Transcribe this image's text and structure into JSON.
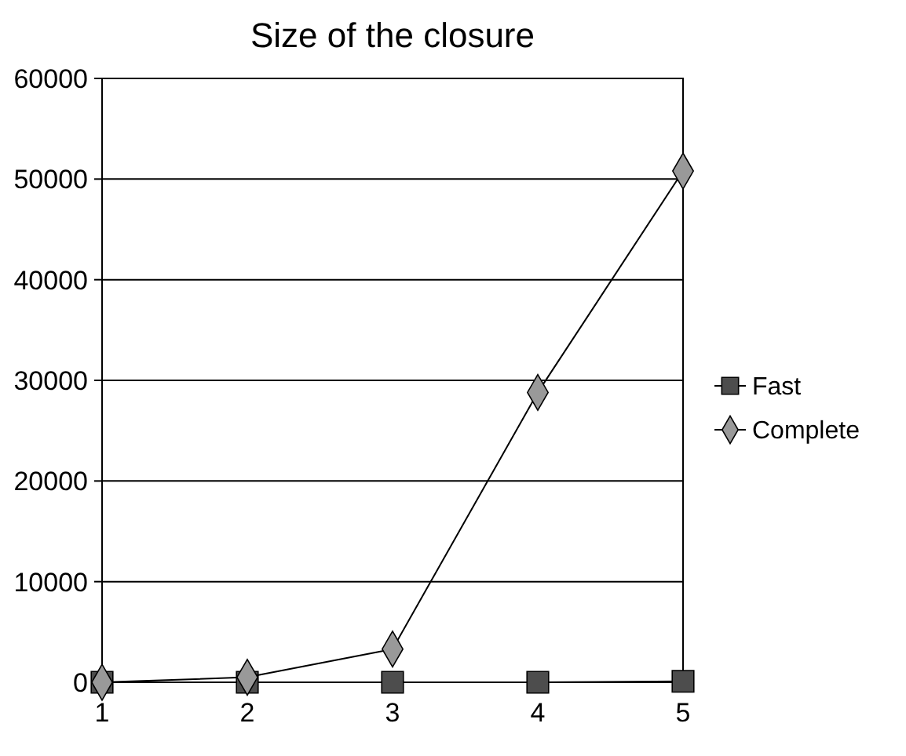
{
  "chart_data": {
    "type": "line",
    "title": "Size of the closure",
    "x": [
      1,
      2,
      3,
      4,
      5
    ],
    "xlim": [
      1,
      5
    ],
    "xticks": [
      1,
      2,
      3,
      4,
      5
    ],
    "ylim": [
      0,
      60000
    ],
    "yticks": [
      0,
      10000,
      20000,
      30000,
      40000,
      50000,
      60000
    ],
    "grid": "y",
    "legend": "right",
    "series": [
      {
        "name": "Fast",
        "color": "#4d4d4d",
        "marker": "square",
        "values": [
          0,
          0,
          0,
          0,
          100
        ]
      },
      {
        "name": "Complete",
        "color": "#999999",
        "marker": "diamond",
        "values": [
          0,
          500,
          3300,
          28800,
          50800
        ]
      }
    ]
  }
}
